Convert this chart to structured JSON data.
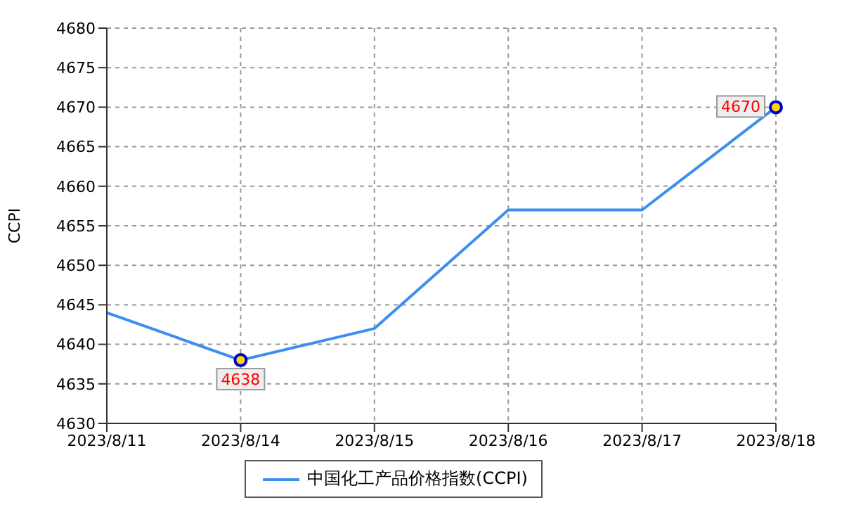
{
  "chart_data": {
    "type": "line",
    "ylabel": "CCPI",
    "categories": [
      "2023/8/11",
      "2023/8/14",
      "2023/8/15",
      "2023/8/16",
      "2023/8/17",
      "2023/8/18"
    ],
    "series": [
      {
        "name": "中国化工产品价格指数(CCPI)",
        "color": "#3d8ef0",
        "values": [
          4644,
          4638,
          4642,
          4657,
          4657,
          4670
        ],
        "value_labels": [
          null,
          "4638",
          null,
          null,
          null,
          "4670"
        ]
      }
    ],
    "ylim": [
      4630,
      4680
    ],
    "yticks": [
      4630,
      4635,
      4640,
      4645,
      4650,
      4655,
      4660,
      4665,
      4670,
      4675,
      4680
    ],
    "grid": true,
    "legend": "bottom"
  }
}
